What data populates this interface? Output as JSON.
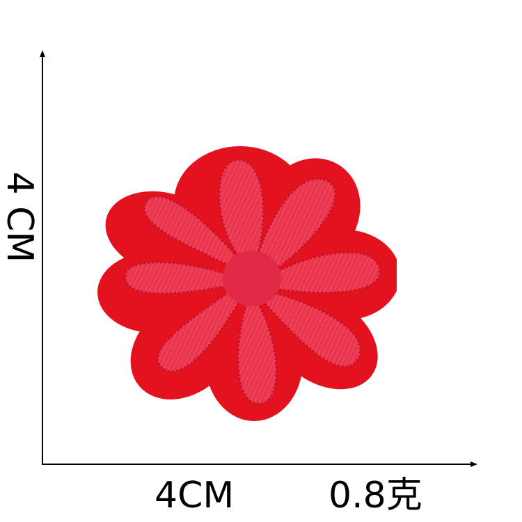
{
  "dimensions": {
    "width_text": "4CM",
    "height_text": "4 CM",
    "weight_text": "0.8克"
  },
  "patch": {
    "felt_color": "#e3121f",
    "petal_color": "#e9364d",
    "stitch_color": "#c9102a",
    "center_color": "#e02a46"
  },
  "axis_color": "#000000"
}
